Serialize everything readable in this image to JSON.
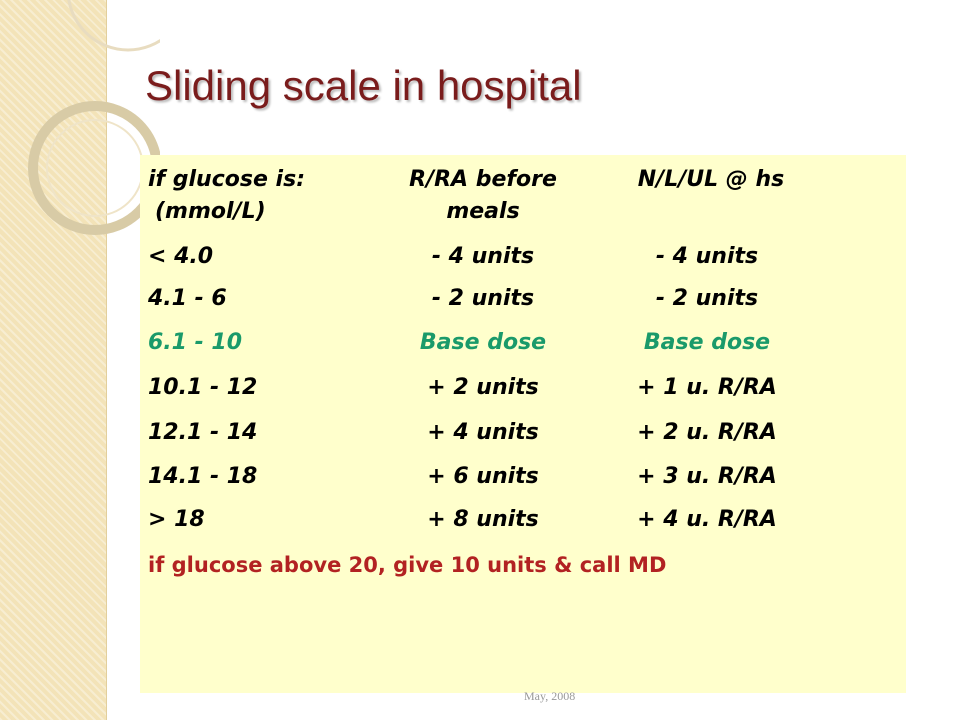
{
  "slide": {
    "title": "Sliding scale in hospital",
    "table": {
      "header": [
        [
          "if glucose is:",
          "(mmol/L)"
        ],
        [
          "R/RA before",
          "meals"
        ],
        [
          "N/L/UL @ hs"
        ]
      ],
      "rows": [
        [
          "< 4.0",
          "- 4 units",
          "- 4 units"
        ],
        [
          "4.1 - 6",
          "- 2 units",
          "- 2 units"
        ],
        [
          "6.1 - 10",
          "Base dose",
          "Base dose"
        ],
        [
          "10.1 - 12",
          "+ 2 units",
          "+ 1 u. R/RA"
        ],
        [
          "12.1 - 14",
          "+ 4 units",
          "+ 2 u. R/RA"
        ],
        [
          "14.1 - 18",
          "+ 6 units",
          "+ 3 u. R/RA"
        ],
        [
          "> 18",
          "+ 8 units",
          "+ 4 u. R/RA"
        ]
      ]
    },
    "note": "if glucose above 20, give 10 units & call MD",
    "footer": "May, 2008"
  }
}
